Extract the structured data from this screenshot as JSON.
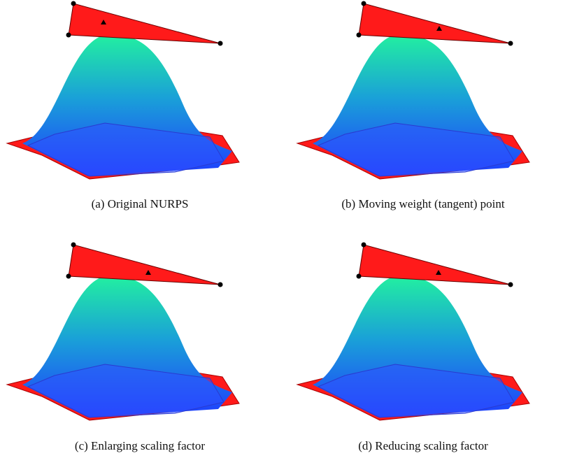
{
  "figures": [
    {
      "caption": "(a) Original NURPS"
    },
    {
      "caption": "(b) Moving weight (tangent) point"
    },
    {
      "caption": "(c) Enlarging scaling factor"
    },
    {
      "caption": "(d) Reducing scaling factor"
    }
  ]
}
